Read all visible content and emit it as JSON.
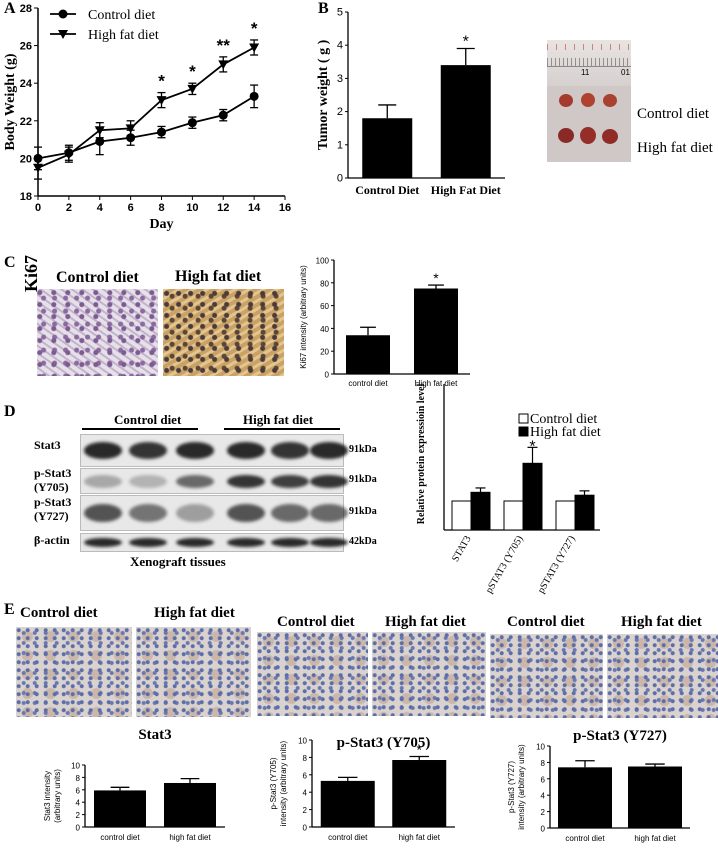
{
  "panels": {
    "A": "A",
    "B": "B",
    "C": "C",
    "D": "D",
    "E": "E"
  },
  "panel_b_photo": {
    "control_label": "Control diet",
    "hfd_label": "High fat diet",
    "ruler_marks": [
      "11",
      "01"
    ]
  },
  "panel_c_images": {
    "control_label": "Control diet",
    "hfd_label": "High fat diet",
    "row_label": "Ki67"
  },
  "panel_d_blot": {
    "group_labels": [
      "Control diet",
      "High fat diet"
    ],
    "row_labels": [
      "Stat3",
      "p-Stat3\n(Y705)",
      "p-Stat3\n(Y727)",
      "β-actin"
    ],
    "row_label_lines": [
      [
        "Stat3"
      ],
      [
        "p-Stat3",
        "(Y705)"
      ],
      [
        "p-Stat3",
        "(Y727)"
      ],
      [
        "β-actin"
      ]
    ],
    "kda_labels": [
      "91kDa",
      "91kDa",
      "91kDa",
      "42kDa"
    ],
    "caption": "Xenograft tissues"
  },
  "panel_e_images": {
    "labels": [
      "Control diet",
      "High fat diet",
      "Control diet",
      "High fat diet",
      "Control diet",
      "High fat diet"
    ]
  },
  "chart_data": [
    {
      "id": "A",
      "type": "line",
      "xlabel": "Day",
      "ylabel": "Body Weight (g)",
      "xlim": [
        0,
        16
      ],
      "ylim": [
        18,
        28
      ],
      "xticks": [
        0,
        2,
        4,
        6,
        8,
        10,
        12,
        14,
        16
      ],
      "yticks": [
        18,
        20,
        22,
        24,
        26,
        28
      ],
      "x": [
        0,
        2,
        4,
        6,
        8,
        10,
        12,
        14
      ],
      "series": [
        {
          "name": "Control diet",
          "marker": "circle",
          "values": [
            20.0,
            20.3,
            20.9,
            21.1,
            21.4,
            21.9,
            22.3,
            23.3
          ],
          "errors": [
            0.6,
            0.4,
            0.7,
            0.4,
            0.3,
            0.3,
            0.3,
            0.6
          ]
        },
        {
          "name": "High fat diet",
          "marker": "triangle-down",
          "values": [
            19.5,
            20.2,
            21.5,
            21.6,
            23.1,
            23.7,
            25.0,
            25.9
          ],
          "errors": [
            0.6,
            0.4,
            0.4,
            0.4,
            0.4,
            0.3,
            0.4,
            0.4
          ]
        }
      ],
      "annotations": [
        {
          "x": 8,
          "text": "*"
        },
        {
          "x": 10,
          "text": "*"
        },
        {
          "x": 12,
          "text": "**"
        },
        {
          "x": 14,
          "text": "*"
        }
      ]
    },
    {
      "id": "B",
      "type": "bar",
      "ylabel": "Tumor weight ( g )",
      "ylim": [
        0,
        5
      ],
      "yticks": [
        0,
        1,
        2,
        3,
        4,
        5
      ],
      "categories": [
        "Control Diet",
        "High Fat Diet"
      ],
      "values": [
        1.8,
        3.4
      ],
      "errors": [
        0.4,
        0.5
      ],
      "annotations": [
        "",
        "*"
      ]
    },
    {
      "id": "C",
      "type": "bar",
      "ylabel": "Ki67 intensity (arbitrary units)",
      "ylim": [
        0,
        100
      ],
      "yticks": [
        0,
        20,
        40,
        60,
        80,
        100
      ],
      "categories": [
        "control diet",
        "High fat diet"
      ],
      "values": [
        34,
        75
      ],
      "errors": [
        7,
        3
      ],
      "annotations": [
        "",
        "*"
      ]
    },
    {
      "id": "D",
      "type": "bar",
      "ylabel": "Relative protein expressioin level",
      "ylim": [
        0,
        4
      ],
      "categories": [
        "STAT3",
        "pSTAT3 (Y705)",
        "pSTAT3 (Y727)"
      ],
      "series": [
        {
          "name": "Control diet",
          "values": [
            1.0,
            1.0,
            1.0
          ],
          "errors": [
            0,
            0,
            0
          ]
        },
        {
          "name": "High fat diet",
          "values": [
            1.3,
            2.3,
            1.2
          ],
          "errors": [
            0.15,
            0.55,
            0.15
          ]
        }
      ],
      "annotations": [
        "",
        "*",
        ""
      ],
      "legend": "top-right"
    },
    {
      "id": "E1",
      "type": "bar",
      "title": "Stat3",
      "ylabel": "Stat3 intensity (arbitrary units)",
      "ylim": [
        0,
        10
      ],
      "yticks": [
        0,
        2,
        4,
        6,
        8,
        10
      ],
      "categories": [
        "control diet",
        "high fat diet"
      ],
      "values": [
        5.9,
        7.1
      ],
      "errors": [
        0.5,
        0.7
      ],
      "annotations": [
        "",
        ""
      ]
    },
    {
      "id": "E2",
      "type": "bar",
      "title": "p-Stat3 (Y705)",
      "ylabel": "p-Stat3 (Y705) intensity (arbitrary units)",
      "ylim": [
        0,
        10
      ],
      "yticks": [
        0,
        2,
        4,
        6,
        8,
        10
      ],
      "categories": [
        "control diet",
        "high fat diet"
      ],
      "values": [
        5.3,
        7.7
      ],
      "errors": [
        0.4,
        0.4
      ],
      "annotations": [
        "",
        "*"
      ]
    },
    {
      "id": "E3",
      "type": "bar",
      "title": "p-Stat3 (Y727)",
      "ylabel": "p-Stat3 (Y727) intensity (arbitrary units)",
      "ylim": [
        0,
        10
      ],
      "yticks": [
        0,
        2,
        4,
        6,
        8,
        10
      ],
      "categories": [
        "control diet",
        "high fat diet"
      ],
      "values": [
        7.4,
        7.5
      ],
      "errors": [
        0.8,
        0.3
      ],
      "annotations": [
        "",
        ""
      ]
    }
  ]
}
